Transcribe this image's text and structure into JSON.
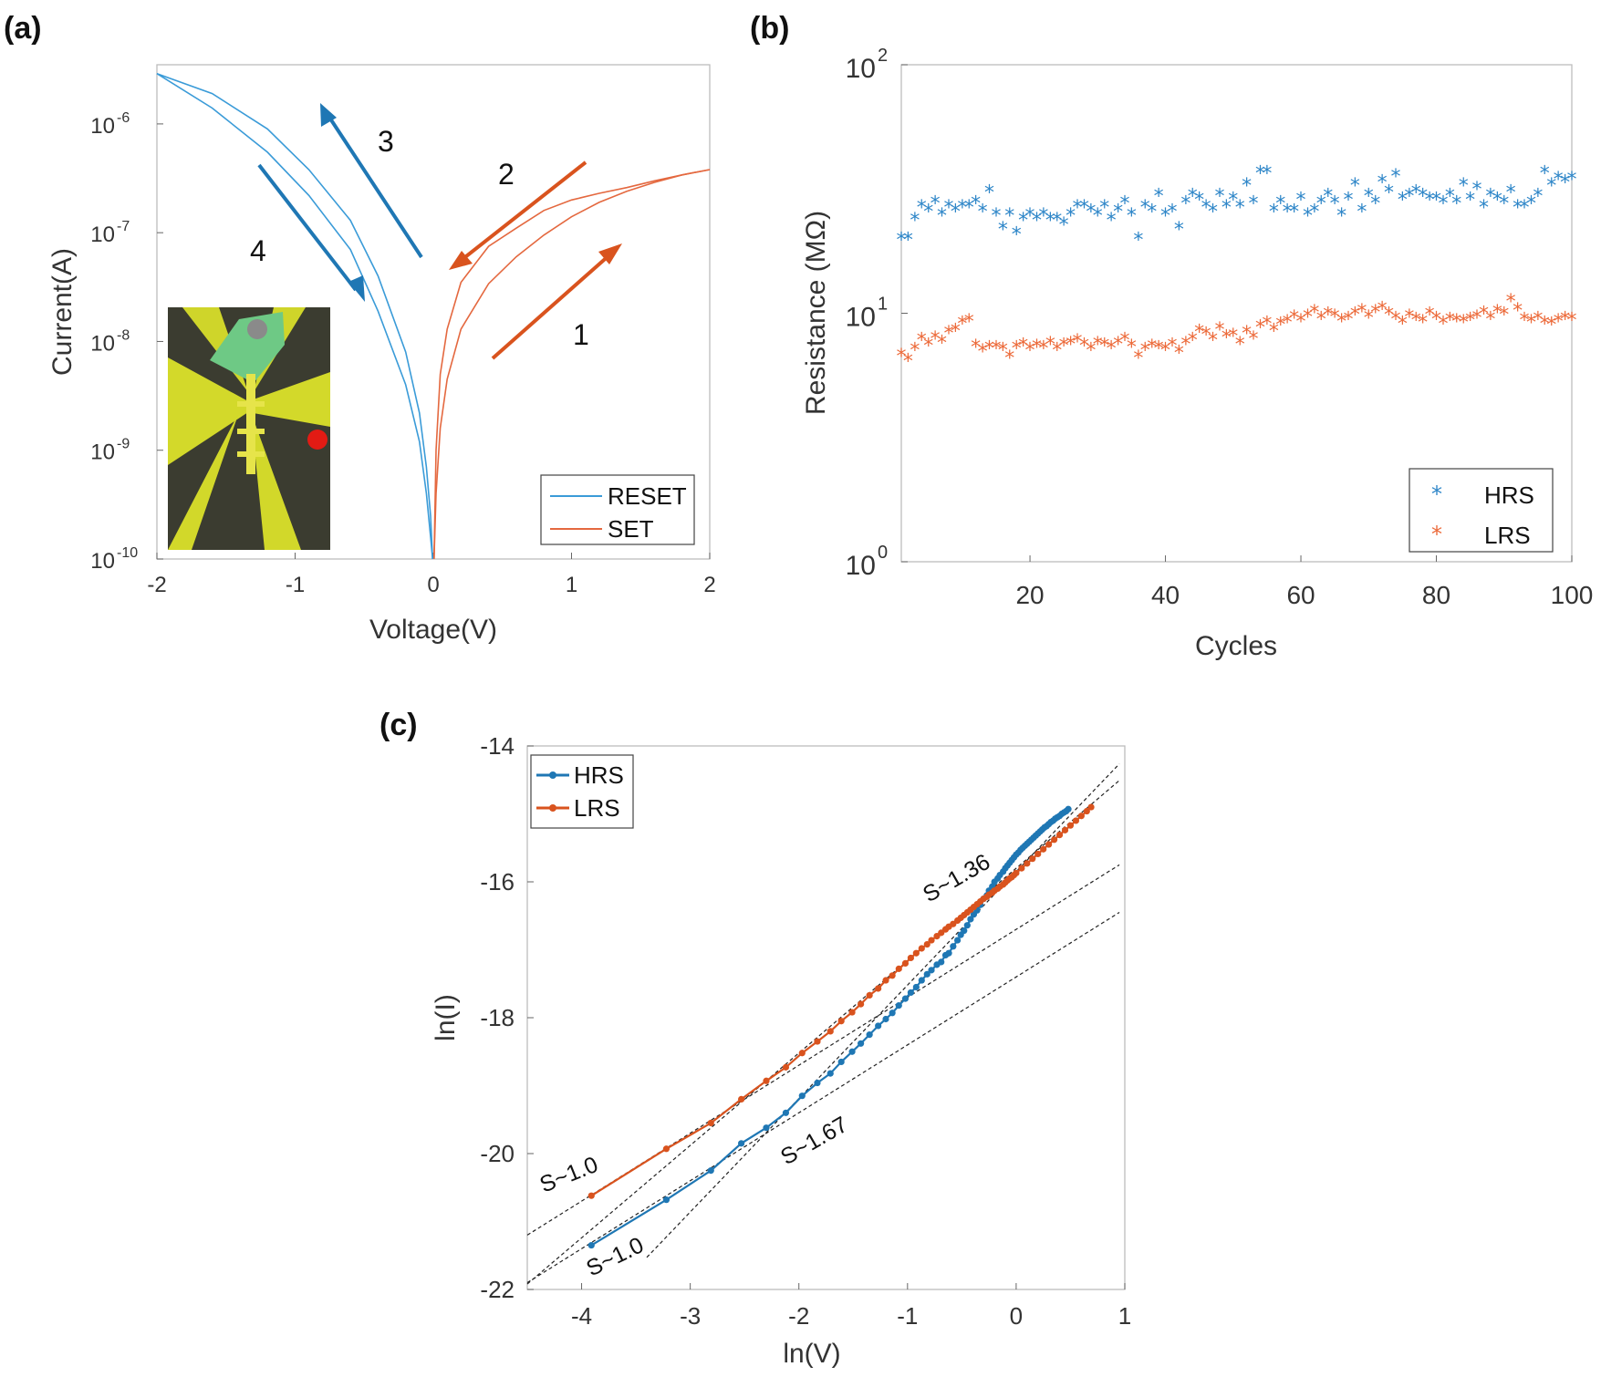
{
  "colors": {
    "blue": "#1f77b4",
    "orange": "#d9531e",
    "reset": "#3a9bd8",
    "set": "#e4683f",
    "hrs_star": "#2e86c8",
    "lrs_star": "#ec6a3a"
  },
  "chart_data": [
    {
      "panel": "(a)",
      "type": "line",
      "xlabel": "Voltage(V)",
      "ylabel": "Current(A)",
      "xlim": [
        -2,
        2
      ],
      "ylim": [
        1e-10,
        3.5e-06
      ],
      "yscale": "log",
      "xticks": [
        "-2",
        "-1",
        "0",
        "1",
        "2"
      ],
      "yticks": [
        {
          "base": "10",
          "exp": "-10"
        },
        {
          "base": "10",
          "exp": "-9"
        },
        {
          "base": "10",
          "exp": "-8"
        },
        {
          "base": "10",
          "exp": "-7"
        },
        {
          "base": "10",
          "exp": "-6"
        }
      ],
      "legend": {
        "position": "bottom-right",
        "entries": [
          "RESET",
          "SET"
        ]
      },
      "annotations": [
        "1",
        "2",
        "3",
        "4"
      ],
      "series": [
        {
          "name": "RESET",
          "color": "#3a9bd8",
          "x": [
            -2,
            -1.6,
            -1.2,
            -0.9,
            -0.6,
            -0.4,
            -0.2,
            -0.1,
            -0.05,
            -0.02,
            -0.005
          ],
          "y": [
            2.9e-06,
            1.9e-06,
            9e-07,
            3.8e-07,
            1.3e-07,
            4e-08,
            8e-09,
            2.2e-09,
            7e-10,
            2.5e-10,
            1e-10
          ],
          "y_return": [
            2.9e-06,
            1.4e-06,
            5.5e-07,
            2.2e-07,
            7e-08,
            1.9e-08,
            4e-09,
            1.2e-09,
            4e-10,
            1.6e-10,
            1e-10
          ]
        },
        {
          "name": "SET",
          "color": "#e4683f",
          "x": [
            0.005,
            0.02,
            0.05,
            0.1,
            0.2,
            0.4,
            0.6,
            0.8,
            1.0,
            1.2,
            1.4,
            1.6,
            1.8,
            2.0
          ],
          "y": [
            1e-10,
            1e-09,
            5e-09,
            1.3e-08,
            3.5e-08,
            7.5e-08,
            1.1e-07,
            1.6e-07,
            2e-07,
            2.3e-07,
            2.6e-07,
            3e-07,
            3.4e-07,
            3.8e-07
          ],
          "y_return": [
            1e-10,
            4e-10,
            1.6e-09,
            4.5e-09,
            1.3e-08,
            3.4e-08,
            6e-08,
            9.5e-08,
            1.4e-07,
            1.9e-07,
            2.4e-07,
            2.9e-07,
            3.4e-07,
            3.8e-07
          ]
        }
      ]
    },
    {
      "panel": "(b)",
      "type": "scatter",
      "xlabel": "Cycles",
      "ylabel": "Resistance (MΩ)",
      "xlim": [
        1,
        100
      ],
      "ylim": [
        1,
        100
      ],
      "yscale": "log",
      "xticks": [
        "20",
        "40",
        "60",
        "80",
        "100"
      ],
      "yticks": [
        {
          "base": "10",
          "exp": "0"
        },
        {
          "base": "10",
          "exp": "1"
        },
        {
          "base": "10",
          "exp": "2"
        }
      ],
      "legend": {
        "position": "bottom-right",
        "entries": [
          "HRS",
          "LRS"
        ]
      },
      "series": [
        {
          "name": "HRS",
          "color": "#2e86c8",
          "x": [
            1,
            2,
            3,
            4,
            5,
            6,
            7,
            8,
            9,
            10,
            11,
            12,
            13,
            14,
            15,
            16,
            17,
            18,
            19,
            20,
            21,
            22,
            23,
            24,
            25,
            26,
            27,
            28,
            29,
            30,
            31,
            32,
            33,
            34,
            35,
            36,
            37,
            38,
            39,
            40,
            41,
            42,
            43,
            44,
            45,
            46,
            47,
            48,
            49,
            50,
            51,
            52,
            53,
            54,
            55,
            56,
            57,
            58,
            59,
            60,
            61,
            62,
            63,
            64,
            65,
            66,
            67,
            68,
            69,
            70,
            71,
            72,
            73,
            74,
            75,
            76,
            77,
            78,
            79,
            80,
            81,
            82,
            83,
            84,
            85,
            86,
            87,
            88,
            89,
            90,
            91,
            92,
            93,
            94,
            95,
            96,
            97,
            98,
            99,
            100
          ],
          "y": [
            20,
            20,
            24,
            27,
            26,
            28,
            25,
            27,
            26,
            27,
            27,
            28,
            26,
            31,
            25,
            22,
            25,
            21,
            24,
            25,
            24,
            25,
            24,
            24,
            23,
            25,
            27,
            27,
            26,
            25,
            27,
            24,
            26,
            28,
            25,
            20,
            27,
            26,
            30,
            25,
            26,
            22,
            28,
            30,
            29,
            27,
            26,
            30,
            27,
            29,
            27,
            33,
            28,
            37,
            37,
            26,
            28,
            26,
            26,
            29,
            25,
            26,
            28,
            30,
            28,
            25,
            29,
            33,
            26,
            30,
            28,
            34,
            31,
            36,
            29,
            30,
            31,
            30,
            29,
            29,
            28,
            30,
            28,
            33,
            29,
            32,
            27,
            30,
            29,
            28,
            31,
            27,
            27,
            28,
            30,
            37,
            33,
            35,
            34,
            35
          ]
        },
        {
          "name": "LRS",
          "color": "#ec6a3a",
          "x": [
            1,
            2,
            3,
            4,
            5,
            6,
            7,
            8,
            9,
            10,
            11,
            12,
            13,
            14,
            15,
            16,
            17,
            18,
            19,
            20,
            21,
            22,
            23,
            24,
            25,
            26,
            27,
            28,
            29,
            30,
            31,
            32,
            33,
            34,
            35,
            36,
            37,
            38,
            39,
            40,
            41,
            42,
            43,
            44,
            45,
            46,
            47,
            48,
            49,
            50,
            51,
            52,
            53,
            54,
            55,
            56,
            57,
            58,
            59,
            60,
            61,
            62,
            63,
            64,
            65,
            66,
            67,
            68,
            69,
            70,
            71,
            72,
            73,
            74,
            75,
            76,
            77,
            78,
            79,
            80,
            81,
            82,
            83,
            84,
            85,
            86,
            87,
            88,
            89,
            90,
            91,
            92,
            93,
            94,
            95,
            96,
            97,
            98,
            99,
            100
          ],
          "y": [
            6.8,
            6.5,
            7.2,
            7.9,
            7.5,
            8.0,
            7.7,
            8.4,
            8.6,
            9.2,
            9.4,
            7.4,
            7.1,
            7.3,
            7.3,
            7.2,
            6.7,
            7.3,
            7.5,
            7.2,
            7.4,
            7.3,
            7.6,
            7.2,
            7.5,
            7.6,
            7.8,
            7.5,
            7.2,
            7.6,
            7.5,
            7.3,
            7.6,
            7.9,
            7.4,
            6.7,
            7.2,
            7.4,
            7.3,
            7.2,
            7.5,
            7.0,
            7.6,
            7.9,
            8.5,
            8.3,
            7.9,
            8.7,
            8.1,
            8.2,
            7.6,
            8.4,
            8.0,
            8.9,
            9.2,
            8.6,
            9.1,
            9.3,
            9.7,
            9.4,
            9.8,
            10.2,
            9.6,
            10.0,
            9.8,
            9.4,
            9.6,
            10.0,
            10.3,
            9.7,
            10.2,
            10.5,
            10.0,
            9.6,
            9.2,
            9.8,
            9.5,
            9.3,
            10.0,
            9.6,
            9.2,
            9.5,
            9.4,
            9.3,
            9.5,
            9.7,
            10.1,
            9.6,
            10.2,
            10.0,
            11.3,
            10.4,
            9.5,
            9.3,
            9.6,
            9.2,
            9.1,
            9.4,
            9.6,
            9.5
          ]
        }
      ]
    },
    {
      "panel": "(c)",
      "type": "line",
      "xlabel": "ln(V)",
      "ylabel": "ln(I)",
      "xlim": [
        -4.5,
        1
      ],
      "ylim": [
        -22,
        -14
      ],
      "xticks": [
        "-4",
        "-3",
        "-2",
        "-1",
        "0",
        "1"
      ],
      "yticks": [
        "-22",
        "-20",
        "-18",
        "-16",
        "-14"
      ],
      "legend": {
        "position": "top-left",
        "entries": [
          "HRS",
          "LRS"
        ]
      },
      "annotations": [
        "S~1.0",
        "S~1.0",
        "S~1.67",
        "S~1.36"
      ],
      "series": [
        {
          "name": "HRS",
          "color": "#1f77b4",
          "x": [
            -3.91,
            -3.22,
            -2.81,
            -2.53,
            -2.3,
            -2.12,
            -1.97,
            -1.83,
            -1.71,
            -1.61,
            -1.51,
            -1.43,
            -1.35,
            -1.27,
            -1.2,
            -1.14,
            -1.08,
            -1.02,
            -0.97,
            -0.92,
            -0.87,
            -0.82,
            -0.78,
            -0.73,
            -0.69,
            -0.65,
            -0.62,
            -0.58,
            -0.54,
            -0.51,
            -0.48,
            -0.45,
            -0.42,
            -0.39,
            -0.36,
            -0.33,
            -0.3,
            -0.27,
            -0.25,
            -0.22,
            -0.2,
            -0.17,
            -0.15,
            -0.12,
            -0.1,
            -0.08,
            -0.06,
            -0.04,
            -0.02,
            0.0,
            0.02,
            0.04,
            0.06,
            0.08,
            0.1,
            0.12,
            0.14,
            0.16,
            0.18,
            0.2,
            0.22,
            0.24,
            0.26,
            0.28,
            0.3,
            0.32,
            0.34,
            0.36,
            0.38,
            0.4,
            0.42,
            0.44,
            0.46,
            0.48
          ],
          "y": [
            -21.35,
            -20.68,
            -20.25,
            -19.85,
            -19.62,
            -19.4,
            -19.15,
            -18.96,
            -18.82,
            -18.65,
            -18.5,
            -18.38,
            -18.25,
            -18.12,
            -18.02,
            -17.93,
            -17.82,
            -17.72,
            -17.63,
            -17.55,
            -17.45,
            -17.36,
            -17.3,
            -17.22,
            -17.18,
            -17.08,
            -17.05,
            -16.95,
            -16.86,
            -16.78,
            -16.72,
            -16.64,
            -16.55,
            -16.48,
            -16.42,
            -16.34,
            -16.25,
            -16.2,
            -16.13,
            -16.07,
            -16.0,
            -15.95,
            -15.9,
            -15.85,
            -15.8,
            -15.76,
            -15.72,
            -15.68,
            -15.64,
            -15.6,
            -15.57,
            -15.53,
            -15.5,
            -15.47,
            -15.44,
            -15.41,
            -15.38,
            -15.35,
            -15.32,
            -15.29,
            -15.26,
            -15.23,
            -15.2,
            -15.18,
            -15.15,
            -15.12,
            -15.1,
            -15.07,
            -15.05,
            -15.03,
            -15.0,
            -14.98,
            -14.96,
            -14.93
          ]
        },
        {
          "name": "LRS",
          "color": "#d9531e",
          "x": [
            -3.91,
            -3.22,
            -2.81,
            -2.53,
            -2.3,
            -2.12,
            -1.97,
            -1.83,
            -1.71,
            -1.61,
            -1.51,
            -1.43,
            -1.35,
            -1.27,
            -1.2,
            -1.14,
            -1.08,
            -1.02,
            -0.97,
            -0.92,
            -0.87,
            -0.82,
            -0.78,
            -0.73,
            -0.69,
            -0.65,
            -0.62,
            -0.58,
            -0.54,
            -0.51,
            -0.48,
            -0.45,
            -0.42,
            -0.39,
            -0.36,
            -0.33,
            -0.3,
            -0.27,
            -0.25,
            -0.22,
            -0.2,
            -0.17,
            -0.15,
            -0.12,
            -0.1,
            -0.08,
            -0.06,
            -0.04,
            -0.02,
            0.0,
            0.05,
            0.1,
            0.15,
            0.2,
            0.25,
            0.3,
            0.35,
            0.4,
            0.45,
            0.5,
            0.55,
            0.6,
            0.65,
            0.69
          ],
          "y": [
            -20.62,
            -19.93,
            -19.55,
            -19.2,
            -18.93,
            -18.73,
            -18.52,
            -18.35,
            -18.2,
            -18.05,
            -17.92,
            -17.8,
            -17.67,
            -17.57,
            -17.45,
            -17.38,
            -17.28,
            -17.2,
            -17.12,
            -17.05,
            -16.98,
            -16.92,
            -16.86,
            -16.8,
            -16.75,
            -16.7,
            -16.66,
            -16.62,
            -16.57,
            -16.53,
            -16.49,
            -16.45,
            -16.41,
            -16.37,
            -16.33,
            -16.29,
            -16.25,
            -16.22,
            -16.19,
            -16.16,
            -16.13,
            -16.1,
            -16.07,
            -16.04,
            -16.01,
            -15.98,
            -15.95,
            -15.93,
            -15.9,
            -15.87,
            -15.8,
            -15.73,
            -15.66,
            -15.59,
            -15.52,
            -15.45,
            -15.38,
            -15.31,
            -15.24,
            -15.17,
            -15.1,
            -15.03,
            -14.96,
            -14.9
          ]
        }
      ],
      "fit_lines": [
        {
          "label": "S~1.0",
          "slope": 1.0,
          "x": [
            -4.5,
            0.95
          ]
        },
        {
          "label": "S~1.0",
          "slope": 1.0,
          "x": [
            -4.5,
            0.95
          ]
        },
        {
          "label": "S~1.67",
          "slope": 1.67,
          "x": [
            -3.4,
            0.95
          ]
        },
        {
          "label": "S~1.36",
          "slope": 1.36,
          "x": [
            -4.5,
            0.95
          ]
        }
      ]
    }
  ]
}
